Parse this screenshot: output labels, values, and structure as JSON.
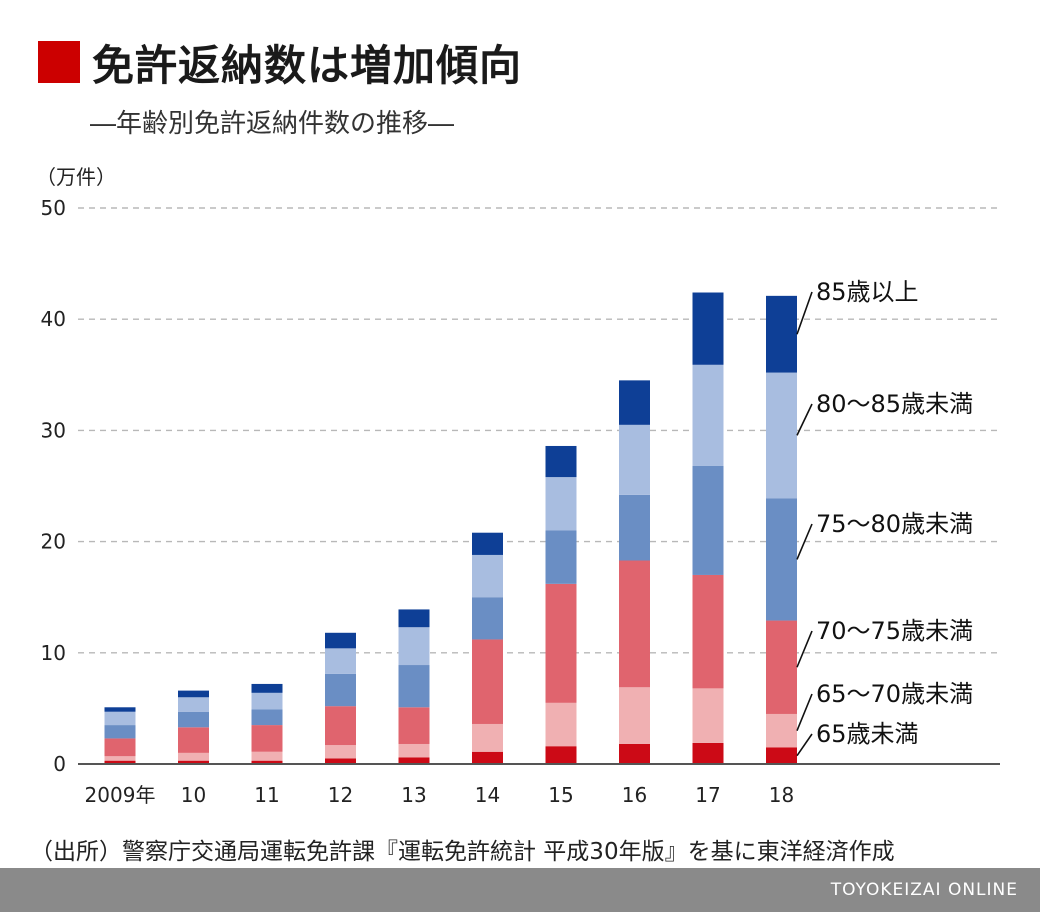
{
  "header": {
    "title": "免許返納数は増加傾向",
    "subtitle": "―年齢別免許返納件数の推移―"
  },
  "colors": {
    "accent": "#cc0000",
    "series": [
      "#cc0a16",
      "#f0b0b2",
      "#e0646e",
      "#6a8ec4",
      "#a8bde0",
      "#0e3f96"
    ],
    "grid": "#b8b8b8",
    "axis": "#555555",
    "footer": "#8a8a8a"
  },
  "source": "（出所）警察庁交通局運転免許課『運転免許統計 平成30年版』を基に東洋経済作成",
  "footer": "TOYOKEIZAI ONLINE",
  "chart_data": {
    "type": "bar",
    "stacked": true,
    "unit_label": "（万件）",
    "categories": [
      "2009年",
      "10",
      "11",
      "12",
      "13",
      "14",
      "15",
      "16",
      "17",
      "18"
    ],
    "ylim": [
      0,
      50
    ],
    "yticks": [
      0,
      10,
      20,
      30,
      40,
      50
    ],
    "grid": true,
    "series": [
      {
        "name": "65歳未満",
        "values": [
          0.3,
          0.3,
          0.3,
          0.5,
          0.6,
          1.1,
          1.6,
          1.8,
          1.9,
          1.5
        ]
      },
      {
        "name": "65〜70歳未満",
        "values": [
          0.4,
          0.7,
          0.8,
          1.2,
          1.2,
          2.5,
          3.9,
          5.1,
          4.9,
          3.0
        ]
      },
      {
        "name": "70〜75歳未満",
        "values": [
          1.6,
          2.3,
          2.4,
          3.5,
          3.3,
          7.6,
          10.7,
          11.4,
          10.2,
          8.4
        ]
      },
      {
        "name": "75〜80歳未満",
        "values": [
          1.2,
          1.4,
          1.4,
          2.9,
          3.8,
          3.8,
          4.8,
          5.9,
          9.8,
          11.0
        ]
      },
      {
        "name": "80〜85歳未満",
        "values": [
          1.2,
          1.3,
          1.5,
          2.3,
          3.4,
          3.8,
          4.8,
          6.3,
          9.1,
          11.3
        ]
      },
      {
        "name": "85歳以上",
        "values": [
          0.4,
          0.6,
          0.8,
          1.4,
          1.6,
          2.0,
          2.8,
          4.0,
          6.5,
          6.9
        ]
      }
    ],
    "legend_placement": "right"
  }
}
